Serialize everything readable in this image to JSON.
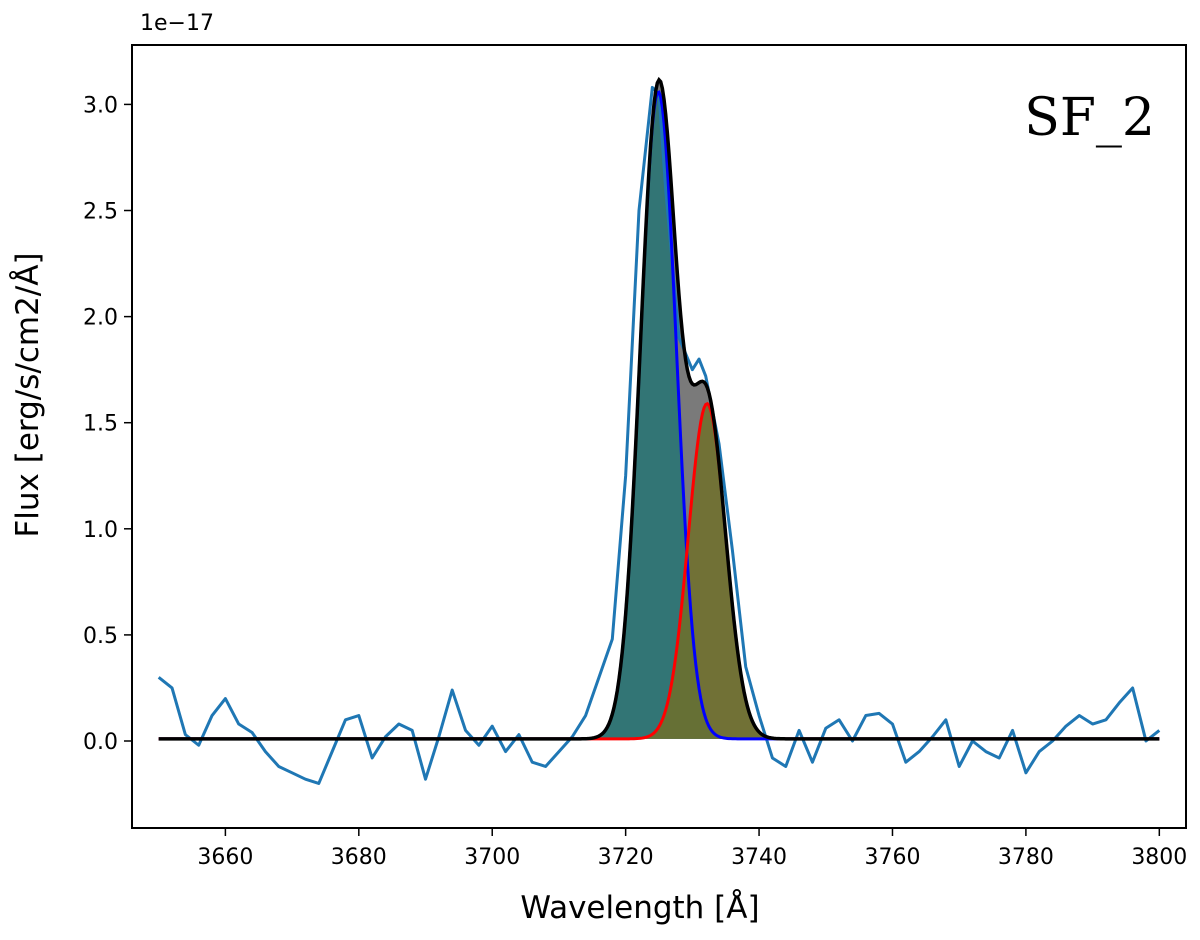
{
  "chart_data": {
    "type": "line",
    "title": "",
    "panel_label": "SF_2",
    "xlabel": "Wavelength [Å]",
    "ylabel": "Flux [erg/s/cm2/Å]",
    "y_offset_label": "1e−17",
    "xlim": [
      3646,
      3804
    ],
    "ylim": [
      -0.41,
      3.28
    ],
    "xticks": [
      3660,
      3680,
      3700,
      3720,
      3740,
      3760,
      3780,
      3800
    ],
    "yticks": [
      0.0,
      0.5,
      1.0,
      1.5,
      2.0,
      2.5,
      3.0
    ],
    "ytick_labels": [
      "0.0",
      "0.5",
      "1.0",
      "1.5",
      "2.0",
      "2.5",
      "3.0"
    ],
    "grid": false,
    "legend": "none",
    "continuum": 0.01,
    "series": [
      {
        "role": "observed",
        "color": "#1f77b4",
        "x": [
          3650,
          3652,
          3654,
          3656,
          3658,
          3660,
          3662,
          3664,
          3666,
          3668,
          3670,
          3672,
          3674,
          3676,
          3678,
          3680,
          3682,
          3684,
          3686,
          3688,
          3690,
          3692,
          3694,
          3696,
          3698,
          3700,
          3702,
          3704,
          3706,
          3708,
          3710,
          3712,
          3714,
          3716,
          3718,
          3720,
          3722,
          3724,
          3725,
          3726,
          3728,
          3730,
          3731,
          3732,
          3734,
          3736,
          3738,
          3740,
          3742,
          3744,
          3746,
          3748,
          3750,
          3752,
          3754,
          3756,
          3758,
          3760,
          3762,
          3764,
          3766,
          3768,
          3770,
          3772,
          3774,
          3776,
          3778,
          3780,
          3782,
          3784,
          3786,
          3788,
          3790,
          3792,
          3794,
          3796,
          3798,
          3800
        ],
        "y": [
          0.3,
          0.25,
          0.03,
          -0.02,
          0.12,
          0.2,
          0.08,
          0.04,
          -0.05,
          -0.12,
          -0.15,
          -0.18,
          -0.2,
          -0.05,
          0.1,
          0.12,
          -0.08,
          0.02,
          0.08,
          0.05,
          -0.18,
          0.02,
          0.24,
          0.05,
          -0.02,
          0.07,
          -0.05,
          0.03,
          -0.1,
          -0.12,
          -0.05,
          0.02,
          0.12,
          0.3,
          0.48,
          1.25,
          2.5,
          3.08,
          3.05,
          2.6,
          1.9,
          1.75,
          1.8,
          1.72,
          1.4,
          0.9,
          0.35,
          0.12,
          -0.08,
          -0.12,
          0.05,
          -0.1,
          0.06,
          0.1,
          0.0,
          0.12,
          0.13,
          0.08,
          -0.1,
          -0.05,
          0.02,
          0.1,
          -0.12,
          0.0,
          -0.05,
          -0.08,
          0.05,
          -0.15,
          -0.05,
          0.0,
          0.07,
          0.12,
          0.08,
          0.1,
          0.18,
          0.25,
          0.0,
          0.05
        ]
      },
      {
        "role": "component-1",
        "color": "#0000ff",
        "fill": "#2e7575",
        "model": "gaussian",
        "amplitude": 3.05,
        "center": 3724.9,
        "sigma": 2.7
      },
      {
        "role": "component-2",
        "color": "#ff0000",
        "fill": "#70702a",
        "model": "gaussian",
        "amplitude": 1.58,
        "center": 3732.2,
        "sigma": 2.8
      },
      {
        "role": "total-fit",
        "color": "#000000",
        "fill": "#7a7a7a"
      }
    ]
  }
}
